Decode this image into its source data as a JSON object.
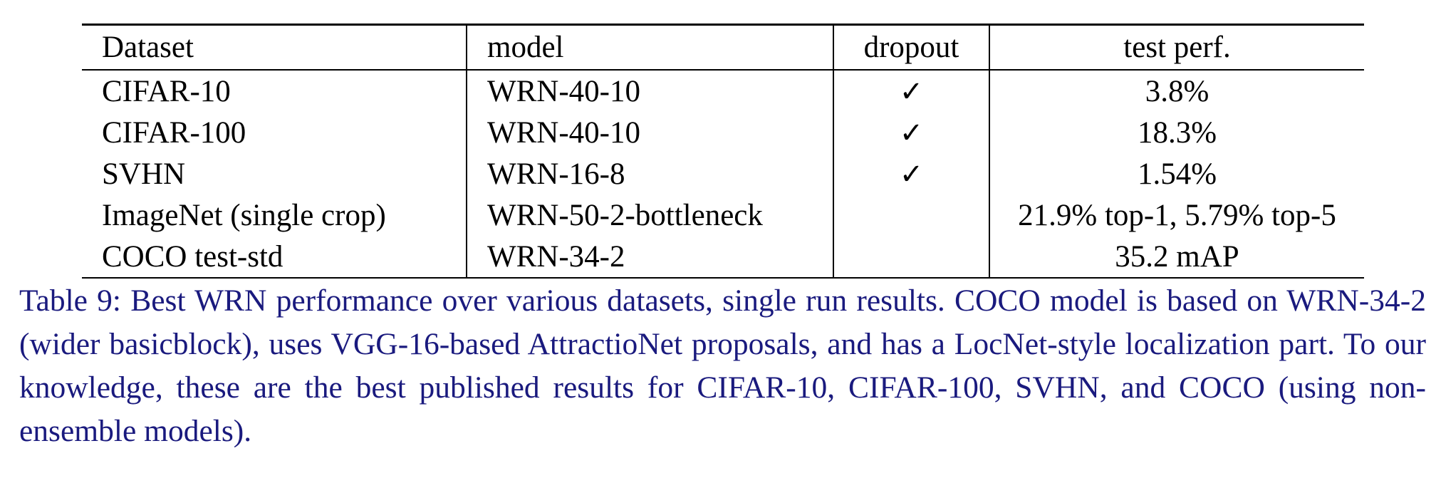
{
  "table": {
    "headers": [
      "Dataset",
      "model",
      "dropout",
      "test perf."
    ],
    "rows": [
      {
        "dataset": "CIFAR-10",
        "model": "WRN-40-10",
        "dropout": "✓",
        "perf": "3.8%"
      },
      {
        "dataset": "CIFAR-100",
        "model": "WRN-40-10",
        "dropout": "✓",
        "perf": "18.3%"
      },
      {
        "dataset": "SVHN",
        "model": "WRN-16-8",
        "dropout": "✓",
        "perf": "1.54%"
      },
      {
        "dataset": "ImageNet (single crop)",
        "model": "WRN-50-2-bottleneck",
        "dropout": "",
        "perf": "21.9% top-1, 5.79% top-5"
      },
      {
        "dataset": "COCO test-std",
        "model": "WRN-34-2",
        "dropout": "",
        "perf": "35.2 mAP"
      }
    ]
  },
  "caption": {
    "text": "Table 9: Best WRN performance over various datasets, single run results. COCO model is based on WRN-34-2 (wider basicblock), uses VGG-16-based AttractioNet proposals, and has a LocNet-style localization part. To our knowledge, these are the best published results for CIFAR-10, CIFAR-100, SVHN, and COCO (using non-ensemble models).",
    "color": "#1a1a7e"
  }
}
